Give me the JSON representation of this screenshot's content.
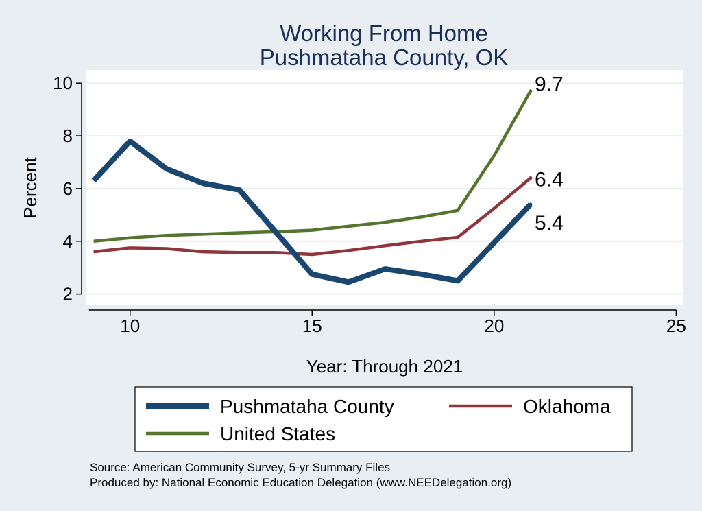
{
  "chart_data": {
    "type": "line",
    "title": [
      "Working From Home",
      "Pushmataha County, OK"
    ],
    "xlabel": "Year: Through 2021",
    "ylabel": "Percent",
    "xlim": [
      8.8,
      25.2
    ],
    "ylim": [
      1.6,
      10.5
    ],
    "xticks": [
      10,
      15,
      20,
      25
    ],
    "yticks": [
      2,
      4,
      6,
      8,
      10
    ],
    "grid": true,
    "legend_position": "bottom",
    "series": [
      {
        "name": "Pushmataha County",
        "color": "#1a476f",
        "width": 8,
        "x": [
          9,
          10,
          11,
          12,
          13,
          14,
          15,
          16,
          17,
          18,
          19,
          20,
          21
        ],
        "y": [
          6.3,
          7.8,
          6.75,
          6.2,
          5.95,
          4.35,
          2.75,
          2.45,
          2.95,
          2.75,
          2.5,
          3.95,
          5.4
        ],
        "end_label": "5.4"
      },
      {
        "name": "Oklahoma",
        "color": "#90353b",
        "width": 4.5,
        "x": [
          9,
          10,
          11,
          12,
          13,
          14,
          15,
          16,
          17,
          18,
          19,
          20,
          21
        ],
        "y": [
          3.6,
          3.75,
          3.72,
          3.6,
          3.57,
          3.57,
          3.5,
          3.65,
          3.83,
          4.0,
          4.15,
          5.25,
          6.4
        ],
        "end_label": "6.4"
      },
      {
        "name": "United States",
        "color": "#55752f",
        "width": 4.5,
        "x": [
          9,
          10,
          11,
          12,
          13,
          14,
          15,
          16,
          17,
          18,
          19,
          20,
          21
        ],
        "y": [
          4.0,
          4.13,
          4.22,
          4.27,
          4.32,
          4.36,
          4.42,
          4.57,
          4.72,
          4.92,
          5.17,
          7.25,
          9.7
        ],
        "end_label": "9.7"
      }
    ],
    "source_lines": [
      "Source: American Community Survey, 5-yr Summary Files",
      "Produced by: National Economic Education Delegation (www.NEEDelegation.org)"
    ]
  }
}
